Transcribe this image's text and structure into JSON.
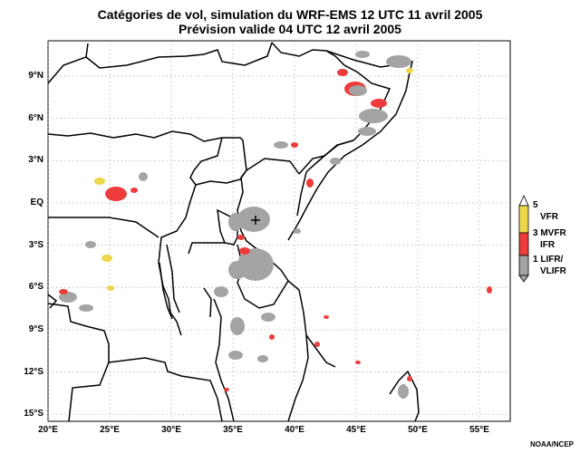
{
  "title": {
    "line1": "Catégories de vol, simulation du WRF-EMS 12 UTC 11 avril 2005",
    "line2": "Prévision valide 04 UTC 12 avril 2005"
  },
  "map": {
    "lon_ticks": [
      "20°E",
      "25°E",
      "30°E",
      "35°E",
      "40°E",
      "45°E",
      "50°E",
      "55°E"
    ],
    "lat_ticks": [
      "9°N",
      "6°N",
      "3°N",
      "EQ",
      "3°S",
      "6°S",
      "9°S",
      "12°S",
      "15°S"
    ],
    "lon_range": [
      20,
      57.5
    ],
    "lat_range": [
      -15.5,
      11.5
    ],
    "grid": true
  },
  "legend": {
    "top_value": "5",
    "vfr": "VFR",
    "mid": "3 MVFR",
    "ifr": "IFR",
    "low": "1 LIFR/",
    "vlifr": "VLIFR"
  },
  "colors": {
    "vfr": "#ecd84a",
    "mvfr_ifr": "#ee3b3b",
    "lifr": "#a4a4a4",
    "border": "#000000",
    "grid": "#9a9a9a"
  },
  "credit": "NOAA/NCEP"
}
